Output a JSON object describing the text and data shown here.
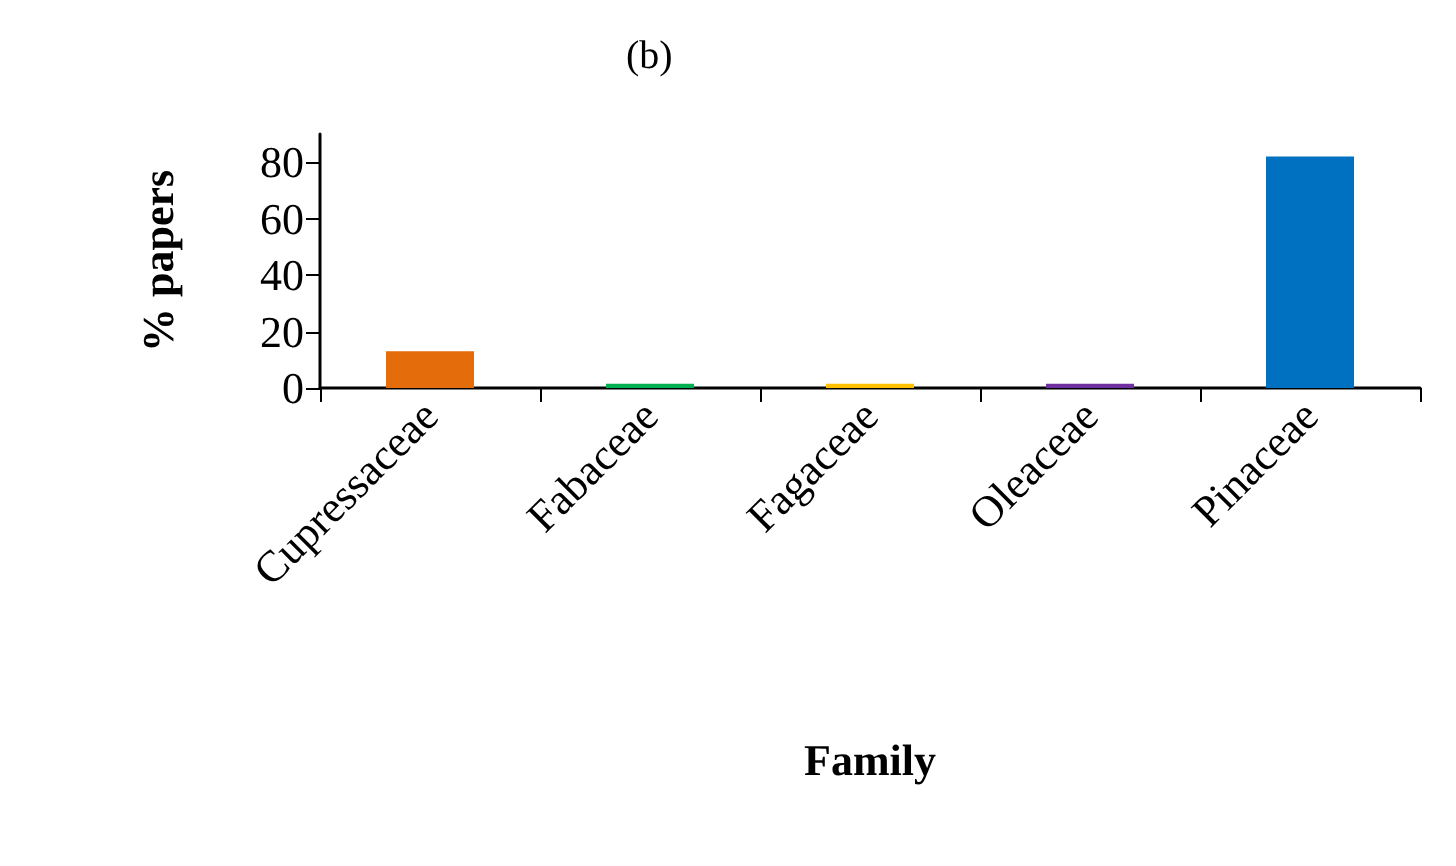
{
  "chart_data": {
    "type": "bar",
    "title": "(b)",
    "xlabel": "Family",
    "ylabel": "% papers",
    "categories": [
      "Cupressaceae",
      "Fabaceae",
      "Fagaceae",
      "Oleaceae",
      "Pinaceae"
    ],
    "values": [
      13,
      1.5,
      1.5,
      1.5,
      82
    ],
    "colors": [
      "#e46c0a",
      "#00b050",
      "#ffc000",
      "#7030a0",
      "#0070c0"
    ],
    "ylim": [
      0,
      90
    ],
    "yticks": [
      0,
      20,
      40,
      60,
      80
    ],
    "grid": false
  }
}
